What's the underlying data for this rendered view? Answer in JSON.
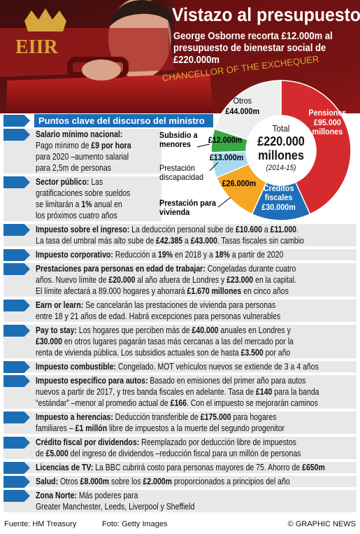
{
  "header": {
    "title": "Vistazo al presupuesto",
    "subtitle": "George Osborne recorta £12.000m al presupuesto de bienestar social de £220.000m",
    "case_text": "EIIR",
    "case_caption": "CHANCELLOR OF THE EXCHEQUER"
  },
  "chart_data": {
    "type": "pie",
    "categories": [
      "Pensiones",
      "Créditos fiscales",
      "Prestación para vivienda",
      "Prestación discapacidad",
      "Subsidio a menores",
      "Otros"
    ],
    "values": [
      95000,
      30000,
      26000,
      13000,
      12000,
      44000
    ],
    "value_labels": [
      "£95.000 millones",
      "£30.000m",
      "£26.000m",
      "£13.000m",
      "£12.000m",
      "£44.000m"
    ],
    "colors": [
      "#d52b2e",
      "#1f6fb8",
      "#f5a623",
      "#a9d9f0",
      "#3aa845",
      "#eeeeee"
    ],
    "total_label": "Total",
    "total_value_label": "£220.000 millones",
    "period": "(2014-15)"
  },
  "section_title": "Puntos clave del discurso del ministro",
  "items": [
    {
      "lines": [
        [
          {
            "b": "Salario mínimo nacional:"
          }
        ],
        [
          "Pago mínimo de ",
          {
            "b": "£9 por hora"
          }
        ],
        [
          "para 2020 –aumento salarial"
        ],
        [
          "para 2,5m de personas"
        ]
      ]
    },
    {
      "lines": [
        [
          {
            "b": "Sector público:"
          },
          " Las"
        ],
        [
          "gratificaciones sobre sueldos"
        ],
        [
          "se limitarán a ",
          {
            "b": "1%"
          },
          " anual en"
        ],
        [
          "los próximos cuatro años"
        ]
      ]
    },
    {
      "lines": [
        [
          {
            "b": "Impuesto sobre el ingreso:"
          },
          " La deducción personal sube de ",
          {
            "b": "£10.600"
          },
          " a ",
          {
            "b": "£11.000"
          },
          "."
        ],
        [
          "La tasa del umbral más alto sube de ",
          {
            "b": "£42.385"
          },
          " a ",
          {
            "b": "£43.000"
          },
          ". Tasas fiscales sin cambio"
        ]
      ]
    },
    {
      "lines": [
        [
          {
            "b": "Impuesto corporativo:"
          },
          " Reducción a ",
          {
            "b": "19%"
          },
          " en 2018 y a ",
          {
            "b": "18%"
          },
          " a partir de 2020"
        ]
      ]
    },
    {
      "lines": [
        [
          {
            "b": "Prestaciones para personas en edad de trabajar:"
          },
          " Congeladas durante cuatro"
        ],
        [
          "años. Nuevo límite de ",
          {
            "b": "£20.000"
          },
          " al año afuera de Londres y ",
          {
            "b": "£23.000"
          },
          " en la capital."
        ],
        [
          "El límite afectará a 89.000 hogares y ahorrará ",
          {
            "b": "£1.670 millones"
          },
          " en cinco años"
        ]
      ]
    },
    {
      "lines": [
        [
          {
            "b": "Earn or learn:"
          },
          " Se cancelarán las prestaciones de vivienda para personas"
        ],
        [
          "entre 18 y 21 años de edad. Habrá excepciones para personas vulnerables"
        ]
      ]
    },
    {
      "lines": [
        [
          {
            "b": "Pay to stay:"
          },
          " Los hogares que perciben más de ",
          {
            "b": "£40.000"
          },
          " anuales en Londres y"
        ],
        [
          {
            "b": "£30.000"
          },
          " en otros lugares pagarán tasas más cercanas a las del mercado por la"
        ],
        [
          "renta de vivienda pública. Los subsidios actuales son de hasta ",
          {
            "b": "£3.500"
          },
          " por año"
        ]
      ]
    },
    {
      "lines": [
        [
          {
            "b": "Impuesto combustible:"
          },
          " Congelado. MOT vehículos nuevos se extiende de 3 a 4 años"
        ]
      ]
    },
    {
      "lines": [
        [
          {
            "b": "Impuesto específico para autos:"
          },
          " Basado en emisiones del primer año para autos"
        ],
        [
          "nuevos a partir de 2017, y tres banda fiscales en adelante. Tasa de ",
          {
            "b": "£140"
          },
          " para la banda"
        ],
        [
          "“estándar” –menor al promedio actual de ",
          {
            "b": "£166"
          },
          ". Con el impuesto se mejorarán caminos"
        ]
      ]
    },
    {
      "lines": [
        [
          {
            "b": "Impuesto a herencias:"
          },
          " Deducción transferible de ",
          {
            "b": "£175.000"
          },
          " para hogares"
        ],
        [
          "familiares – ",
          {
            "b": "£1 millón"
          },
          " libre de impuestos a la muerte del segundo progenitor"
        ]
      ]
    },
    {
      "lines": [
        [
          {
            "b": "Crédito fiscal por dividendos:"
          },
          " Reemplazado por deducción libre de impuestos"
        ],
        [
          "de ",
          {
            "b": "£5.000"
          },
          " del ingreso de dividendos –reducción fiscal para un millón de personas"
        ]
      ]
    },
    {
      "lines": [
        [
          {
            "b": "Licencias de TV:"
          },
          " La BBC cubrirá costo para personas mayores de 75. Ahorro de ",
          {
            "b": "£650m"
          }
        ]
      ]
    },
    {
      "lines": [
        [
          {
            "b": "Salud:"
          },
          " Otros ",
          {
            "b": "£8.000m"
          },
          " sobre los ",
          {
            "b": "£2.000m"
          },
          " proporcionados a principios del año"
        ]
      ]
    },
    {
      "lines": [
        [
          {
            "b": "Zona Norte:"
          },
          " Más poderes para"
        ],
        [
          "Greater Manchester, Leeds, Liverpool y Sheffield"
        ]
      ]
    }
  ],
  "footer": {
    "source": "Fuente: HM Treasury",
    "photo": "Foto: Getty Images",
    "credit": "© GRAPHIC NEWS"
  }
}
